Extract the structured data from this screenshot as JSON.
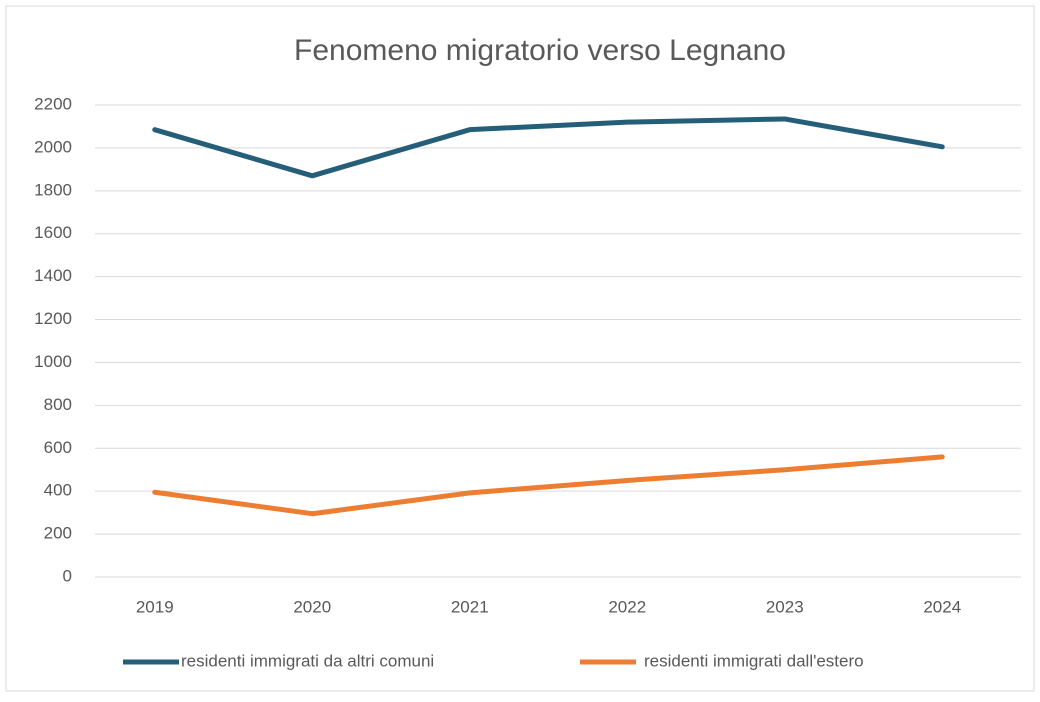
{
  "chart_data": {
    "type": "line",
    "title": "Fenomeno migratorio verso Legnano",
    "categories": [
      "2019",
      "2020",
      "2021",
      "2022",
      "2023",
      "2024"
    ],
    "series": [
      {
        "name": "residenti immigrati da altri comuni",
        "color": "#255e79",
        "values": [
          2085,
          1870,
          2085,
          2120,
          2135,
          2005
        ]
      },
      {
        "name": "residenti immigrati dall'estero",
        "color": "#ed7d31",
        "values": [
          395,
          295,
          392,
          450,
          500,
          560
        ]
      }
    ],
    "ylim": [
      0,
      2200
    ],
    "yticks": [
      0,
      200,
      400,
      600,
      800,
      1000,
      1200,
      1400,
      1600,
      1800,
      2000,
      2200
    ],
    "grid": true,
    "legend": "bottom"
  }
}
